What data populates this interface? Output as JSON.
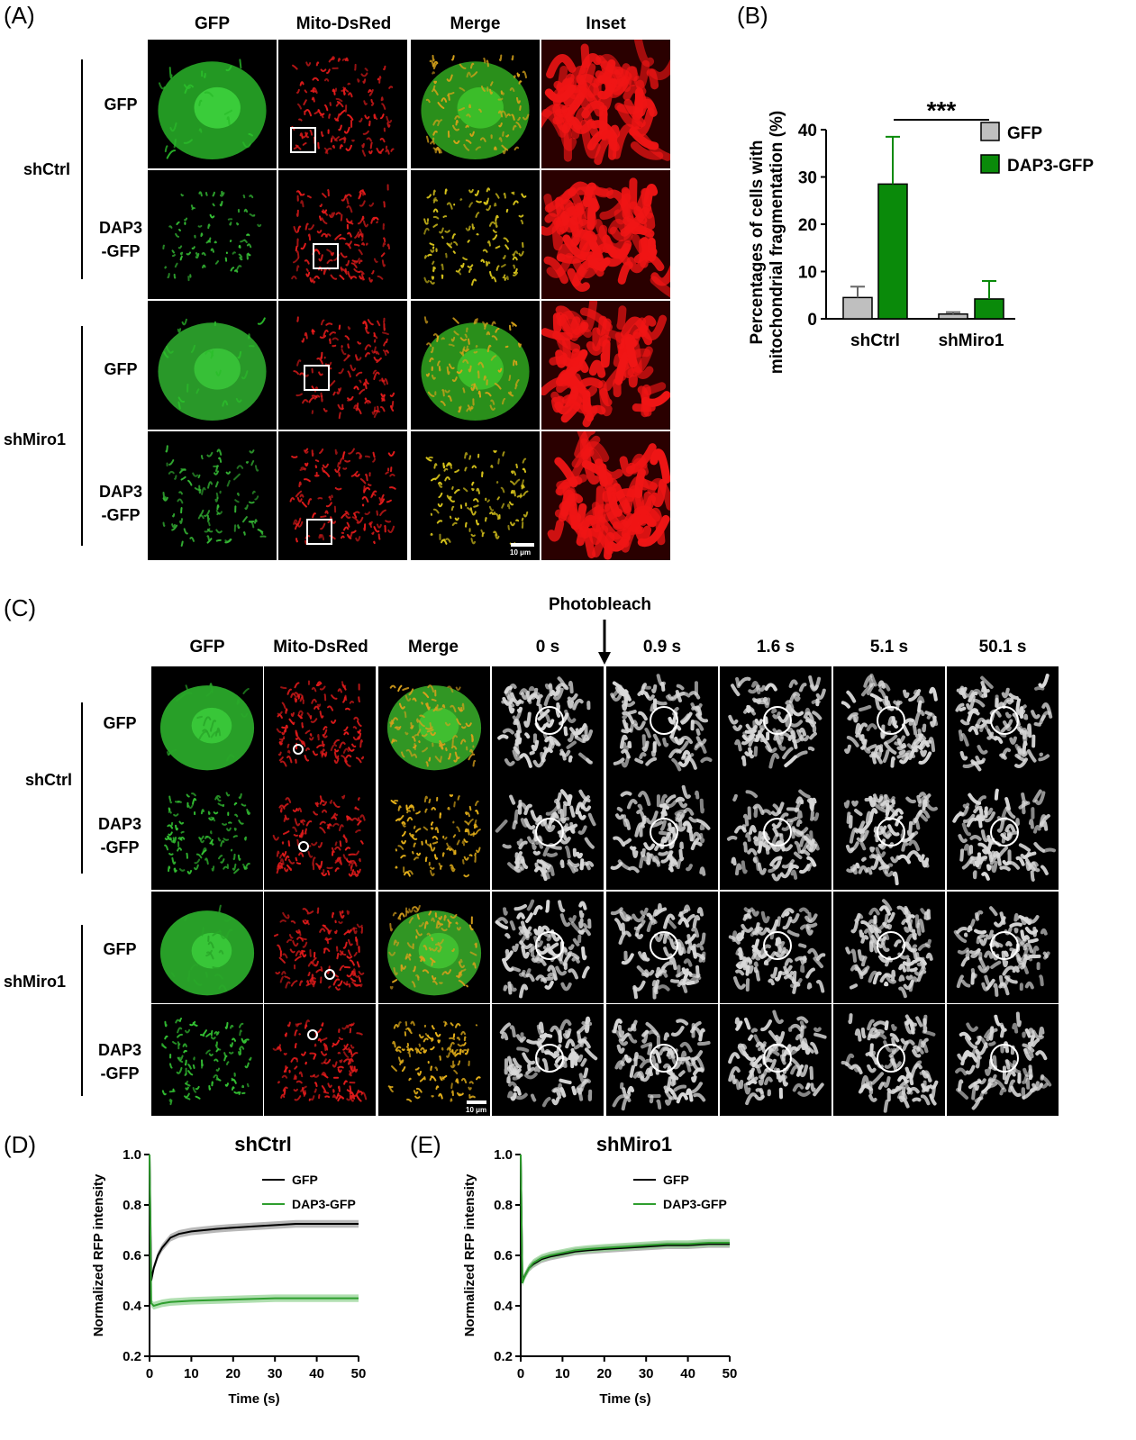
{
  "panel_letters": {
    "a": "(A)",
    "b": "(B)",
    "c": "(C)",
    "d": "(D)",
    "e": "(E)"
  },
  "panel_a": {
    "columns": [
      "GFP",
      "Mito-DsRed",
      "Merge",
      "Inset"
    ],
    "groups": [
      "shCtrl",
      "shMiro1"
    ],
    "rows": [
      {
        "line1": "GFP",
        "line2": ""
      },
      {
        "line1": "DAP3",
        "line2": "-GFP"
      },
      {
        "line1": "GFP",
        "line2": ""
      },
      {
        "line1": "DAP3",
        "line2": "-GFP"
      }
    ],
    "scale_bar": "10 μm"
  },
  "panel_c": {
    "columns": [
      "GFP",
      "Mito-DsRed",
      "Merge"
    ],
    "times": [
      "0 s",
      "0.9 s",
      "1.6 s",
      "5.1 s",
      "50.1 s"
    ],
    "photobleach": "Photobleach",
    "groups": [
      "shCtrl",
      "shMiro1"
    ],
    "rows": [
      {
        "line1": "GFP",
        "line2": ""
      },
      {
        "line1": "DAP3",
        "line2": "-GFP"
      },
      {
        "line1": "GFP",
        "line2": ""
      },
      {
        "line1": "DAP3",
        "line2": "-GFP"
      }
    ],
    "scale_bar": "10 μm"
  },
  "colors": {
    "gfp_bar": "#bfbfbf",
    "dap3_bar": "#0a8a0a",
    "gfp_line": "#000000",
    "dap3_line": "#2e9e2e"
  },
  "chart_data": [
    {
      "id": "B",
      "type": "bar",
      "ylabel": "Percentages of cells with mitochondrial fragmentation (%)",
      "categories": [
        "shCtrl",
        "shMiro1"
      ],
      "series": [
        {
          "name": "GFP",
          "values": [
            4.5,
            1.0
          ],
          "errors": [
            2.3,
            0.4
          ]
        },
        {
          "name": "DAP3-GFP",
          "values": [
            28.5,
            4.2
          ],
          "errors": [
            10.0,
            3.8
          ]
        }
      ],
      "ylim": [
        0,
        40
      ],
      "yticks": [
        0,
        10,
        20,
        30,
        40
      ],
      "annotation": "***",
      "legend": "top-right"
    },
    {
      "id": "D",
      "type": "line",
      "title": "shCtrl",
      "xlabel": "Time (s)",
      "ylabel": "Normalized RFP intensity",
      "xlim": [
        0,
        50
      ],
      "ylim": [
        0.2,
        1.0
      ],
      "xticks": [
        0,
        10,
        20,
        30,
        40,
        50
      ],
      "yticks": [
        0.2,
        0.4,
        0.6,
        0.8,
        1.0
      ],
      "series": [
        {
          "name": "GFP",
          "x": [
            0,
            0.4,
            1,
            2,
            3,
            4,
            5,
            7,
            10,
            13,
            16,
            20,
            25,
            30,
            35,
            40,
            45,
            50
          ],
          "y": [
            1.0,
            0.5,
            0.55,
            0.6,
            0.63,
            0.65,
            0.67,
            0.685,
            0.695,
            0.7,
            0.705,
            0.71,
            0.715,
            0.72,
            0.725,
            0.725,
            0.725,
            0.725
          ]
        },
        {
          "name": "DAP3-GFP",
          "x": [
            0,
            0.4,
            1,
            2,
            3,
            5,
            10,
            20,
            30,
            40,
            50
          ],
          "y": [
            1.0,
            0.41,
            0.4,
            0.405,
            0.41,
            0.415,
            0.42,
            0.425,
            0.43,
            0.43,
            0.43
          ]
        }
      ],
      "legend": "top-right"
    },
    {
      "id": "E",
      "type": "line",
      "title": "shMiro1",
      "xlabel": "Time (s)",
      "ylabel": "Normalized RFP intensity",
      "xlim": [
        0,
        50
      ],
      "ylim": [
        0.2,
        1.0
      ],
      "xticks": [
        0,
        10,
        20,
        30,
        40,
        50
      ],
      "yticks": [
        0.2,
        0.4,
        0.6,
        0.8,
        1.0
      ],
      "series": [
        {
          "name": "GFP",
          "x": [
            0,
            0.4,
            1,
            2,
            3,
            4,
            5,
            7,
            10,
            13,
            16,
            20,
            25,
            30,
            35,
            40,
            45,
            50
          ],
          "y": [
            1.0,
            0.5,
            0.52,
            0.55,
            0.565,
            0.575,
            0.585,
            0.595,
            0.605,
            0.615,
            0.62,
            0.625,
            0.63,
            0.635,
            0.64,
            0.64,
            0.645,
            0.645
          ]
        },
        {
          "name": "DAP3-GFP",
          "x": [
            0,
            0.4,
            1,
            2,
            3,
            4,
            5,
            7,
            10,
            13,
            16,
            20,
            25,
            30,
            35,
            40,
            45,
            50
          ],
          "y": [
            1.0,
            0.49,
            0.52,
            0.55,
            0.57,
            0.58,
            0.59,
            0.6,
            0.61,
            0.62,
            0.625,
            0.63,
            0.635,
            0.64,
            0.645,
            0.645,
            0.65,
            0.65
          ]
        }
      ],
      "legend": "top-right"
    }
  ]
}
